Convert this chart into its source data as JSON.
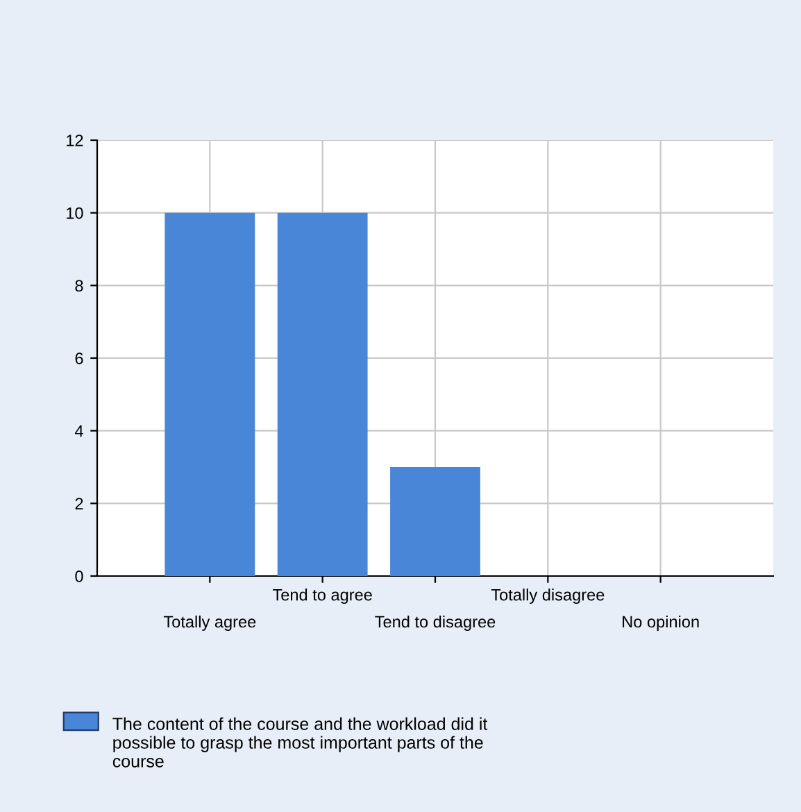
{
  "chart_data": {
    "type": "bar",
    "categories": [
      "Totally agree",
      "Tend to agree",
      "Tend to disagree",
      "Totally disagree",
      "No opinion"
    ],
    "series": [
      {
        "name": "The content of the course and the workload did it possible to grasp the most important parts of the course",
        "color": "#4a86d8",
        "values": [
          10,
          10,
          3,
          0,
          0
        ]
      }
    ],
    "ylim": [
      0,
      12
    ],
    "yticks": [
      0,
      2,
      4,
      6,
      8,
      10,
      12
    ],
    "grid": true,
    "legend": "bottom"
  }
}
